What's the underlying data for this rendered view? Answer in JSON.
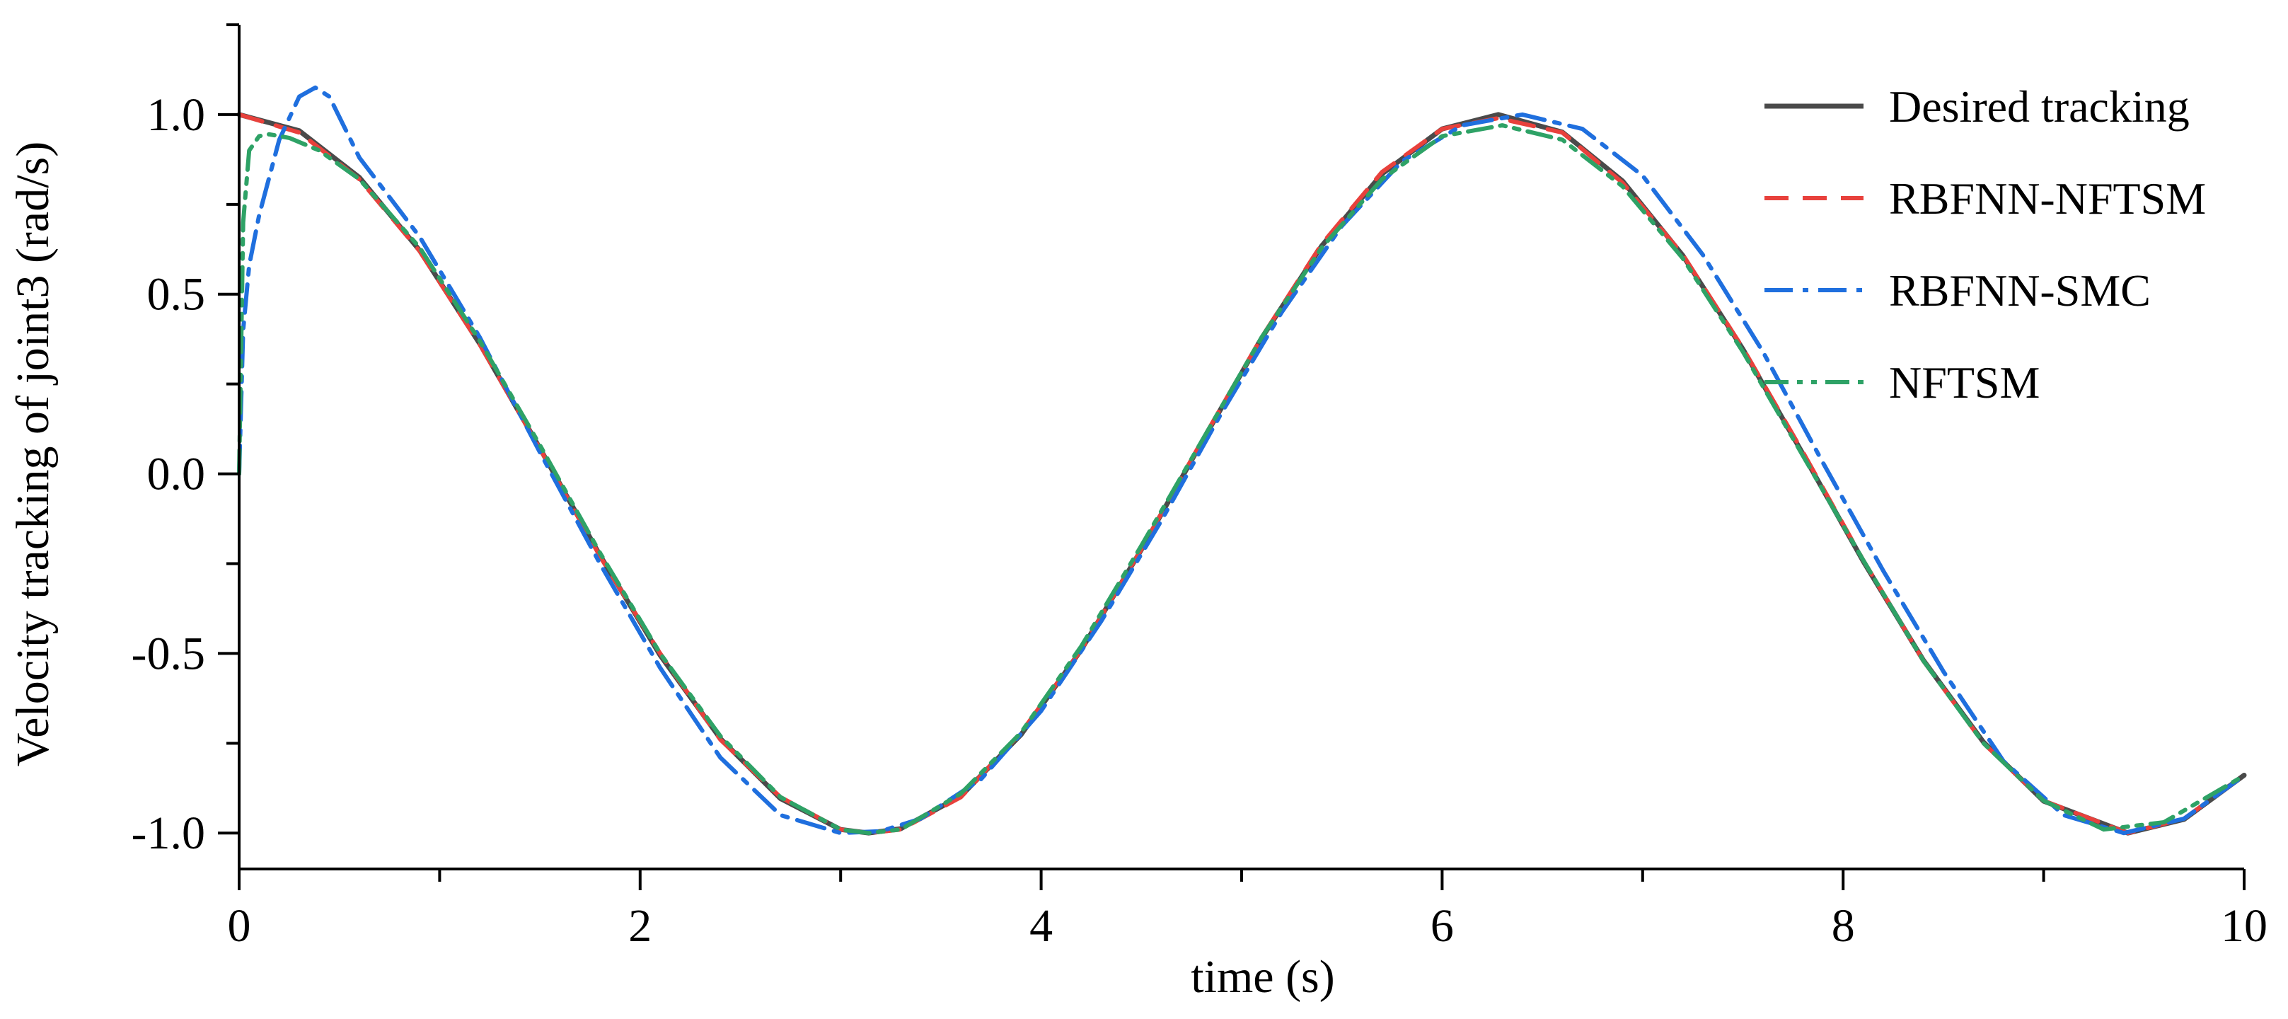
{
  "chart_data": {
    "type": "line",
    "title": "",
    "xlabel": "time (s)",
    "ylabel": "Velocity tracking of joint3 (rad/s)",
    "xlim": [
      0,
      10
    ],
    "ylim": [
      -1.1,
      1.25
    ],
    "xticks": [
      0,
      2,
      4,
      6,
      8,
      10
    ],
    "xtick_labels": [
      "0",
      "2",
      "4",
      "6",
      "8",
      "10"
    ],
    "yticks": [
      -1.0,
      -0.5,
      0.0,
      0.5,
      1.0
    ],
    "ytick_labels": [
      "-1.0",
      "-0.5",
      "0.0",
      "0.5",
      "1.0"
    ],
    "grid": false,
    "legend_position": "top-right",
    "series": [
      {
        "name": "Desired tracking",
        "color": "#4a4a4a",
        "dash": "solid",
        "x": [
          0,
          0.3,
          0.6,
          0.9,
          1.2,
          1.5,
          1.8,
          2.1,
          2.4,
          2.7,
          3.0,
          3.14,
          3.3,
          3.6,
          3.9,
          4.2,
          4.5,
          4.8,
          5.1,
          5.4,
          5.7,
          6.0,
          6.28,
          6.6,
          6.9,
          7.2,
          7.5,
          7.8,
          8.1,
          8.4,
          8.7,
          9.0,
          9.42,
          9.7,
          10.0
        ],
        "y": [
          1.0,
          0.955,
          0.825,
          0.622,
          0.362,
          0.071,
          -0.227,
          -0.505,
          -0.737,
          -0.904,
          -0.99,
          -1.0,
          -0.988,
          -0.897,
          -0.726,
          -0.49,
          -0.211,
          0.087,
          0.378,
          0.635,
          0.835,
          0.96,
          1.0,
          0.951,
          0.815,
          0.608,
          0.347,
          0.055,
          -0.243,
          -0.519,
          -0.747,
          -0.911,
          -1.0,
          -0.962,
          -0.839
        ]
      },
      {
        "name": "RBFNN-NFTSM",
        "color": "#e8413c",
        "dash": "dashed",
        "x": [
          0,
          0.3,
          0.6,
          0.9,
          1.2,
          1.5,
          1.8,
          2.1,
          2.4,
          2.7,
          3.0,
          3.14,
          3.3,
          3.6,
          3.9,
          4.2,
          4.5,
          4.8,
          5.1,
          5.4,
          5.7,
          6.0,
          6.28,
          6.6,
          6.9,
          7.2,
          7.5,
          7.8,
          8.1,
          8.4,
          8.7,
          9.0,
          9.42,
          9.7,
          10.0
        ],
        "y": [
          1.0,
          0.95,
          0.82,
          0.62,
          0.36,
          0.07,
          -0.23,
          -0.5,
          -0.74,
          -0.9,
          -0.99,
          -1.0,
          -0.99,
          -0.9,
          -0.72,
          -0.49,
          -0.21,
          0.09,
          0.38,
          0.64,
          0.84,
          0.96,
          0.99,
          0.95,
          0.81,
          0.61,
          0.35,
          0.06,
          -0.24,
          -0.52,
          -0.75,
          -0.91,
          -1.0,
          -0.96,
          -0.84
        ]
      },
      {
        "name": "RBFNN-SMC",
        "color": "#1f6fde",
        "dash": "dash-dot",
        "x": [
          0,
          0.02,
          0.05,
          0.1,
          0.2,
          0.3,
          0.38,
          0.45,
          0.6,
          0.9,
          1.2,
          1.5,
          1.8,
          2.1,
          2.4,
          2.7,
          3.0,
          3.2,
          3.4,
          3.7,
          4.0,
          4.3,
          4.6,
          4.9,
          5.2,
          5.5,
          5.8,
          6.1,
          6.4,
          6.7,
          7.0,
          7.3,
          7.6,
          7.9,
          8.2,
          8.5,
          8.8,
          9.1,
          9.4,
          9.7,
          10.0
        ],
        "y": [
          0.0,
          0.4,
          0.58,
          0.72,
          0.93,
          1.05,
          1.075,
          1.05,
          0.88,
          0.66,
          0.38,
          0.06,
          -0.25,
          -0.54,
          -0.79,
          -0.95,
          -1.0,
          -0.995,
          -0.96,
          -0.85,
          -0.66,
          -0.41,
          -0.13,
          0.17,
          0.45,
          0.69,
          0.87,
          0.97,
          1.0,
          0.96,
          0.83,
          0.61,
          0.34,
          0.03,
          -0.27,
          -0.55,
          -0.8,
          -0.95,
          -1.0,
          -0.96,
          -0.84
        ]
      },
      {
        "name": "NFTSM",
        "color": "#2ea266",
        "dash": "dash-dot-dot",
        "x": [
          0,
          0.02,
          0.05,
          0.1,
          0.15,
          0.25,
          0.4,
          0.6,
          0.9,
          1.2,
          1.5,
          1.8,
          2.1,
          2.4,
          2.7,
          3.0,
          3.14,
          3.3,
          3.6,
          3.9,
          4.2,
          4.5,
          4.8,
          5.1,
          5.4,
          5.7,
          6.0,
          6.3,
          6.6,
          6.9,
          7.2,
          7.5,
          7.8,
          8.1,
          8.4,
          8.7,
          9.0,
          9.3,
          9.6,
          10.0
        ],
        "y": [
          0.0,
          0.7,
          0.9,
          0.94,
          0.945,
          0.935,
          0.9,
          0.82,
          0.63,
          0.37,
          0.08,
          -0.22,
          -0.5,
          -0.73,
          -0.9,
          -0.99,
          -1.0,
          -0.99,
          -0.89,
          -0.72,
          -0.48,
          -0.2,
          0.09,
          0.38,
          0.63,
          0.82,
          0.94,
          0.97,
          0.93,
          0.8,
          0.6,
          0.34,
          0.05,
          -0.24,
          -0.52,
          -0.75,
          -0.91,
          -0.99,
          -0.97,
          -0.84
        ]
      }
    ]
  }
}
